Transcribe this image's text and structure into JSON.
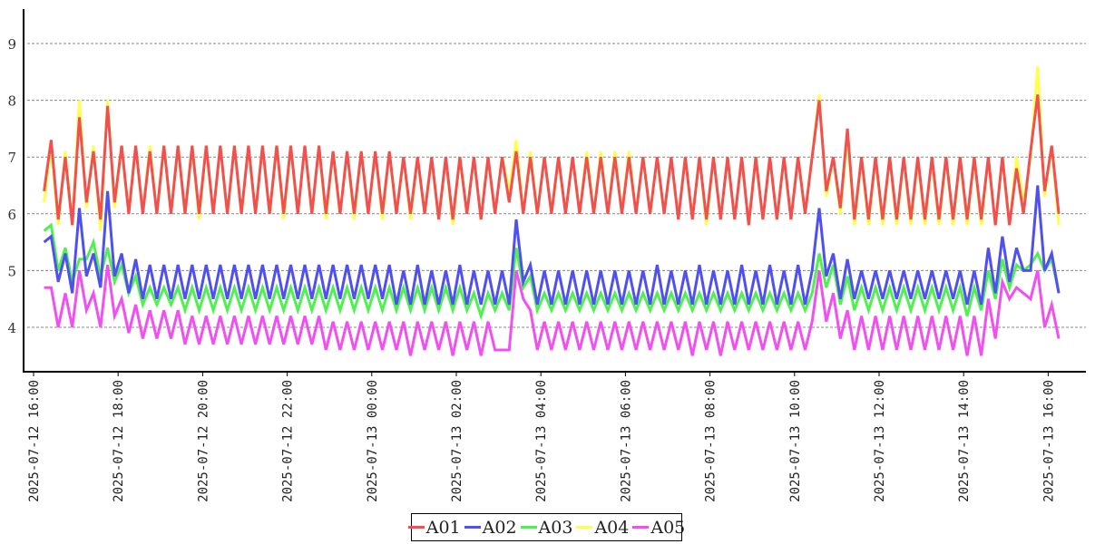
{
  "chart_data": {
    "type": "line",
    "title": "",
    "xlabel": "",
    "ylabel": "",
    "x_start": "2025-07-12 16:15",
    "x_interval_minutes": 10,
    "ylim": [
      3.2,
      9.6
    ],
    "yticks": [
      4,
      5,
      6,
      7,
      8,
      9
    ],
    "xticks": [
      "2025-07-12 16:00",
      "2025-07-12 18:00",
      "2025-07-12 20:00",
      "2025-07-12 22:00",
      "2025-07-13 00:00",
      "2025-07-13 02:00",
      "2025-07-13 04:00",
      "2025-07-13 06:00",
      "2025-07-13 08:00",
      "2025-07-13 10:00",
      "2025-07-13 12:00",
      "2025-07-13 14:00",
      "2025-07-13 16:00"
    ],
    "xticks_minutes_from_first": [
      0,
      120,
      240,
      360,
      480,
      600,
      720,
      840,
      960,
      1080,
      1200,
      1320,
      1440
    ],
    "first_tick_offset_minutes_before_start": 15,
    "grid": "horizontal dashed",
    "legend_position": "bottom-center",
    "series": [
      {
        "name": "A01",
        "color": "#f05050",
        "values": [
          6.4,
          7.3,
          5.9,
          7.0,
          5.8,
          7.7,
          6.2,
          7.1,
          5.9,
          7.9,
          6.2,
          7.2,
          6.0,
          7.2,
          6.0,
          7.1,
          6.0,
          7.2,
          6.0,
          7.2,
          6.0,
          7.2,
          6.0,
          7.2,
          6.0,
          7.2,
          6.0,
          7.2,
          6.0,
          7.2,
          6.0,
          7.2,
          6.0,
          7.2,
          6.0,
          7.2,
          6.0,
          7.2,
          6.0,
          7.2,
          6.0,
          7.1,
          6.0,
          7.1,
          6.0,
          7.1,
          6.0,
          7.1,
          6.0,
          7.1,
          6.0,
          7.0,
          6.0,
          7.0,
          6.0,
          7.0,
          5.9,
          7.0,
          5.9,
          7.0,
          6.0,
          7.0,
          5.9,
          7.0,
          6.0,
          7.0,
          6.2,
          7.1,
          6.0,
          7.0,
          6.0,
          7.0,
          6.0,
          7.0,
          6.0,
          7.0,
          6.0,
          7.0,
          6.0,
          7.0,
          6.0,
          7.0,
          6.0,
          7.0,
          6.0,
          7.0,
          6.0,
          7.0,
          6.0,
          7.0,
          5.9,
          7.0,
          5.9,
          7.0,
          5.9,
          7.0,
          5.9,
          7.0,
          5.9,
          7.0,
          5.8,
          7.0,
          5.9,
          7.0,
          5.9,
          7.0,
          5.9,
          7.0,
          6.0,
          7.0,
          8.0,
          6.4,
          7.0,
          6.1,
          7.5,
          5.9,
          7.0,
          5.9,
          7.0,
          5.9,
          7.0,
          5.9,
          7.0,
          5.9,
          7.0,
          5.9,
          7.0,
          5.9,
          7.0,
          5.9,
          7.0,
          5.9,
          7.0,
          5.9,
          7.0,
          5.8,
          7.0,
          5.8,
          6.8,
          6.0,
          7.1,
          8.1,
          6.4,
          7.2,
          6.0
        ]
      },
      {
        "name": "A02",
        "color": "#5050f0",
        "values": [
          5.5,
          5.6,
          4.8,
          5.3,
          4.6,
          6.1,
          4.9,
          5.3,
          4.7,
          6.4,
          4.9,
          5.3,
          4.6,
          5.2,
          4.5,
          5.1,
          4.5,
          5.1,
          4.5,
          5.1,
          4.5,
          5.1,
          4.5,
          5.1,
          4.5,
          5.1,
          4.5,
          5.1,
          4.5,
          5.1,
          4.5,
          5.1,
          4.5,
          5.1,
          4.5,
          5.1,
          4.5,
          5.1,
          4.5,
          5.1,
          4.5,
          5.1,
          4.5,
          5.1,
          4.5,
          5.1,
          4.5,
          5.1,
          4.5,
          5.1,
          4.4,
          5.0,
          4.4,
          5.1,
          4.4,
          5.0,
          4.4,
          5.0,
          4.4,
          5.1,
          4.4,
          5.0,
          4.4,
          5.0,
          4.4,
          5.0,
          4.4,
          5.9,
          4.8,
          5.1,
          4.4,
          5.0,
          4.4,
          5.0,
          4.4,
          5.0,
          4.4,
          5.0,
          4.4,
          5.0,
          4.4,
          5.0,
          4.4,
          5.0,
          4.4,
          5.0,
          4.4,
          5.1,
          4.4,
          5.0,
          4.4,
          5.0,
          4.4,
          5.1,
          4.4,
          5.0,
          4.4,
          5.0,
          4.4,
          5.1,
          4.4,
          5.0,
          4.4,
          5.1,
          4.4,
          5.0,
          4.4,
          5.1,
          4.4,
          5.0,
          6.1,
          4.9,
          5.3,
          4.5,
          5.2,
          4.5,
          5.0,
          4.5,
          5.0,
          4.5,
          5.0,
          4.5,
          5.0,
          4.5,
          5.0,
          4.5,
          5.0,
          4.5,
          5.0,
          4.5,
          5.0,
          4.4,
          5.0,
          4.4,
          5.4,
          4.6,
          5.6,
          4.8,
          5.4,
          5.0,
          5.0,
          6.5,
          5.0,
          5.3,
          4.6
        ]
      },
      {
        "name": "A03",
        "color": "#50f050",
        "values": [
          5.7,
          5.8,
          5.0,
          5.4,
          4.8,
          5.2,
          5.2,
          5.5,
          4.9,
          5.4,
          4.8,
          5.1,
          4.6,
          4.9,
          4.4,
          4.7,
          4.4,
          4.7,
          4.4,
          4.7,
          4.3,
          4.7,
          4.3,
          4.7,
          4.3,
          4.7,
          4.3,
          4.7,
          4.3,
          4.7,
          4.3,
          4.7,
          4.3,
          4.7,
          4.3,
          4.7,
          4.3,
          4.7,
          4.3,
          4.7,
          4.3,
          4.7,
          4.3,
          4.7,
          4.3,
          4.7,
          4.3,
          4.7,
          4.3,
          4.7,
          4.3,
          4.7,
          4.3,
          4.7,
          4.3,
          4.7,
          4.3,
          4.7,
          4.3,
          4.7,
          4.3,
          4.6,
          4.2,
          4.6,
          4.3,
          4.6,
          4.3,
          5.4,
          4.7,
          4.9,
          4.3,
          4.6,
          4.3,
          4.6,
          4.3,
          4.6,
          4.3,
          4.6,
          4.3,
          4.6,
          4.3,
          4.6,
          4.3,
          4.6,
          4.3,
          4.6,
          4.3,
          4.6,
          4.3,
          4.6,
          4.3,
          4.6,
          4.3,
          4.6,
          4.3,
          4.6,
          4.3,
          4.6,
          4.3,
          4.6,
          4.3,
          4.6,
          4.3,
          4.6,
          4.3,
          4.6,
          4.3,
          4.6,
          4.3,
          4.6,
          5.3,
          4.7,
          5.1,
          4.4,
          4.9,
          4.3,
          4.7,
          4.3,
          4.7,
          4.3,
          4.7,
          4.3,
          4.7,
          4.3,
          4.7,
          4.3,
          4.7,
          4.3,
          4.7,
          4.3,
          4.7,
          4.2,
          4.7,
          4.3,
          5.0,
          4.5,
          5.2,
          4.7,
          5.1,
          5.0,
          5.1,
          5.3,
          5.0,
          5.2,
          4.6
        ]
      },
      {
        "name": "A04",
        "color": "#ffff50",
        "values": [
          6.2,
          7.2,
          5.8,
          7.1,
          5.8,
          8.0,
          6.1,
          7.2,
          5.7,
          8.0,
          6.1,
          7.2,
          6.0,
          7.2,
          6.0,
          7.2,
          6.0,
          7.2,
          6.0,
          7.2,
          6.0,
          7.2,
          5.9,
          7.2,
          6.0,
          7.2,
          6.0,
          7.2,
          6.0,
          7.2,
          6.0,
          7.2,
          6.0,
          7.2,
          5.9,
          7.2,
          6.0,
          7.2,
          6.0,
          7.2,
          5.9,
          7.1,
          6.0,
          7.1,
          5.9,
          7.1,
          6.0,
          7.1,
          5.9,
          7.1,
          6.0,
          7.0,
          5.9,
          7.0,
          6.0,
          7.0,
          5.9,
          7.0,
          5.8,
          7.0,
          6.0,
          7.0,
          5.9,
          7.0,
          6.0,
          7.0,
          6.4,
          7.3,
          6.0,
          7.1,
          6.0,
          7.0,
          6.0,
          7.0,
          6.0,
          7.0,
          6.0,
          7.1,
          6.0,
          7.1,
          6.0,
          7.1,
          6.0,
          7.1,
          6.0,
          7.0,
          6.0,
          7.0,
          6.0,
          7.0,
          5.9,
          7.0,
          5.9,
          7.0,
          5.8,
          7.0,
          5.9,
          7.0,
          5.9,
          7.0,
          5.8,
          7.0,
          5.9,
          7.0,
          5.9,
          7.0,
          5.9,
          7.0,
          6.0,
          7.0,
          8.1,
          6.3,
          7.0,
          6.0,
          7.4,
          5.8,
          7.0,
          5.8,
          7.0,
          5.8,
          7.0,
          5.8,
          7.0,
          5.8,
          7.0,
          5.8,
          7.0,
          5.8,
          7.0,
          5.8,
          7.0,
          5.8,
          7.0,
          5.8,
          7.0,
          5.8,
          7.0,
          5.8,
          7.0,
          6.2,
          7.0,
          8.6,
          6.3,
          7.2,
          5.8
        ]
      },
      {
        "name": "A05",
        "color": "#f050f0",
        "values": [
          4.7,
          4.7,
          4.0,
          4.6,
          4.0,
          5.0,
          4.3,
          4.6,
          4.0,
          5.1,
          4.2,
          4.5,
          3.9,
          4.4,
          3.8,
          4.3,
          3.8,
          4.3,
          3.8,
          4.3,
          3.7,
          4.2,
          3.7,
          4.2,
          3.7,
          4.2,
          3.7,
          4.2,
          3.7,
          4.2,
          3.7,
          4.2,
          3.7,
          4.2,
          3.7,
          4.2,
          3.7,
          4.2,
          3.7,
          4.2,
          3.6,
          4.1,
          3.6,
          4.1,
          3.6,
          4.1,
          3.6,
          4.1,
          3.6,
          4.1,
          3.6,
          4.1,
          3.5,
          4.1,
          3.6,
          4.1,
          3.6,
          4.1,
          3.5,
          4.1,
          3.6,
          4.1,
          3.5,
          4.1,
          3.6,
          3.6,
          3.6,
          5.0,
          4.5,
          4.3,
          3.6,
          4.1,
          3.6,
          4.1,
          3.6,
          4.1,
          3.6,
          4.1,
          3.6,
          4.1,
          3.6,
          4.1,
          3.6,
          4.1,
          3.6,
          4.1,
          3.6,
          4.1,
          3.6,
          4.1,
          3.6,
          4.1,
          3.5,
          4.1,
          3.6,
          4.1,
          3.5,
          4.1,
          3.6,
          4.1,
          3.6,
          4.1,
          3.6,
          4.1,
          3.6,
          4.1,
          3.6,
          4.1,
          3.6,
          4.1,
          5.0,
          4.1,
          4.6,
          3.8,
          4.3,
          3.6,
          4.2,
          3.6,
          4.2,
          3.6,
          4.2,
          3.6,
          4.2,
          3.6,
          4.2,
          3.6,
          4.2,
          3.6,
          4.2,
          3.6,
          4.2,
          3.5,
          4.2,
          3.5,
          4.5,
          3.8,
          4.8,
          4.5,
          4.7,
          4.6,
          4.5,
          5.0,
          4.0,
          4.4,
          3.8
        ]
      }
    ]
  }
}
